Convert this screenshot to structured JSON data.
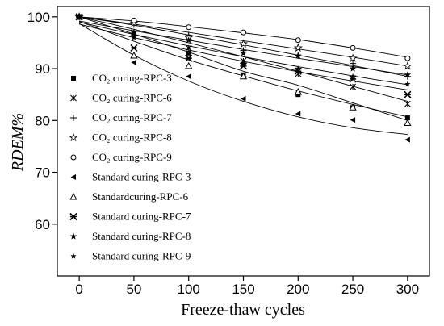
{
  "chart_data": {
    "type": "scatter",
    "xlabel": "Freeze-thaw cycles",
    "ylabel": "RDEM%",
    "xlim": [
      -20,
      320
    ],
    "ylim": [
      50,
      102
    ],
    "xticks": [
      0,
      50,
      100,
      150,
      200,
      250,
      300
    ],
    "yticks": [
      60,
      70,
      80,
      90,
      100
    ],
    "legend_position": "bottom-left",
    "grid": false,
    "fit_lines": true,
    "series": [
      {
        "name": "CO₂ curing-RPC-3",
        "marker": "square",
        "x": [
          0,
          50,
          100,
          150,
          200,
          250,
          300
        ],
        "y": [
          100,
          96.5,
          93,
          88.8,
          85,
          82.5,
          80.5
        ],
        "fit": [
          100,
          96.7,
          93.2,
          89.5,
          86.8,
          83.4,
          80
        ]
      },
      {
        "name": "CO₂ curing-RPC-6",
        "marker": "x",
        "x": [
          0,
          50,
          100,
          150,
          200,
          250,
          300
        ],
        "y": [
          100,
          97,
          94,
          91.5,
          89,
          86.5,
          83.2
        ],
        "fit": [
          100,
          97.6,
          95,
          92.3,
          89.5,
          86.6,
          83.7
        ]
      },
      {
        "name": "CO₂ curing-RPC-7",
        "marker": "plus",
        "x": [
          0,
          50,
          100,
          150,
          200,
          250,
          300
        ],
        "y": [
          100,
          98.5,
          96.5,
          93.5,
          92.5,
          91,
          88.5
        ],
        "fit": [
          100,
          98.4,
          96.5,
          94.6,
          92.6,
          90.6,
          88.5
        ]
      },
      {
        "name": "CO₂ curing-RPC-8",
        "marker": "star-open",
        "x": [
          0,
          50,
          100,
          150,
          200,
          250,
          300
        ],
        "y": [
          100,
          98.8,
          96,
          94.8,
          94,
          92,
          90.5
        ],
        "fit": [
          100,
          98.6,
          97,
          95.4,
          93.8,
          92.2,
          90.5
        ]
      },
      {
        "name": "CO₂ curing-RPC-9",
        "marker": "circle",
        "x": [
          0,
          50,
          100,
          150,
          200,
          250,
          300
        ],
        "y": [
          100,
          99.3,
          98,
          97,
          95.5,
          94,
          92
        ],
        "fit": [
          100,
          99.2,
          98.1,
          96.9,
          95.6,
          94,
          92.2
        ]
      },
      {
        "name": "Standard curing-RPC-3",
        "marker": "triangle-left",
        "x": [
          0,
          50,
          100,
          150,
          200,
          250,
          300
        ],
        "y": [
          100,
          91.2,
          88.5,
          84.2,
          81.3,
          80.1,
          76.3
        ],
        "fit": [
          98.7,
          92.6,
          87.6,
          83.7,
          80.7,
          78.6,
          77.3
        ]
      },
      {
        "name": "Standardcuring-RPC-6",
        "marker": "triangle-up",
        "x": [
          0,
          50,
          100,
          150,
          200,
          250,
          300
        ],
        "y": [
          100,
          92.5,
          90.5,
          88.5,
          85.5,
          82.5,
          79.5
        ],
        "fit": [
          99.1,
          95.3,
          91.7,
          88.6,
          85.7,
          83.1,
          80.7
        ]
      },
      {
        "name": "Standard curing-RPC-7",
        "marker": "x-bold",
        "x": [
          0,
          50,
          100,
          150,
          200,
          250,
          300
        ],
        "y": [
          100,
          94,
          92,
          90.5,
          89.5,
          88,
          85
        ],
        "fit": [
          98.6,
          96,
          93.6,
          91.4,
          89.4,
          87.6,
          85.9
        ]
      },
      {
        "name": "Standard curing-RPC-8",
        "marker": "star",
        "x": [
          0,
          50,
          100,
          150,
          200,
          250,
          300
        ],
        "y": [
          100,
          97,
          95.5,
          93,
          92.5,
          90,
          88.8
        ],
        "fit": [
          99.2,
          97.3,
          95.5,
          93.7,
          92,
          90.4,
          88.8
        ]
      },
      {
        "name": "Standard curing-RPC-9",
        "marker": "star-small",
        "x": [
          0,
          50,
          100,
          150,
          200,
          250,
          300
        ],
        "y": [
          100,
          96,
          93,
          91,
          90,
          88.5,
          87
        ],
        "fit": [
          99,
          96.6,
          94.4,
          92.3,
          90.4,
          88.6,
          86.9
        ]
      }
    ]
  }
}
